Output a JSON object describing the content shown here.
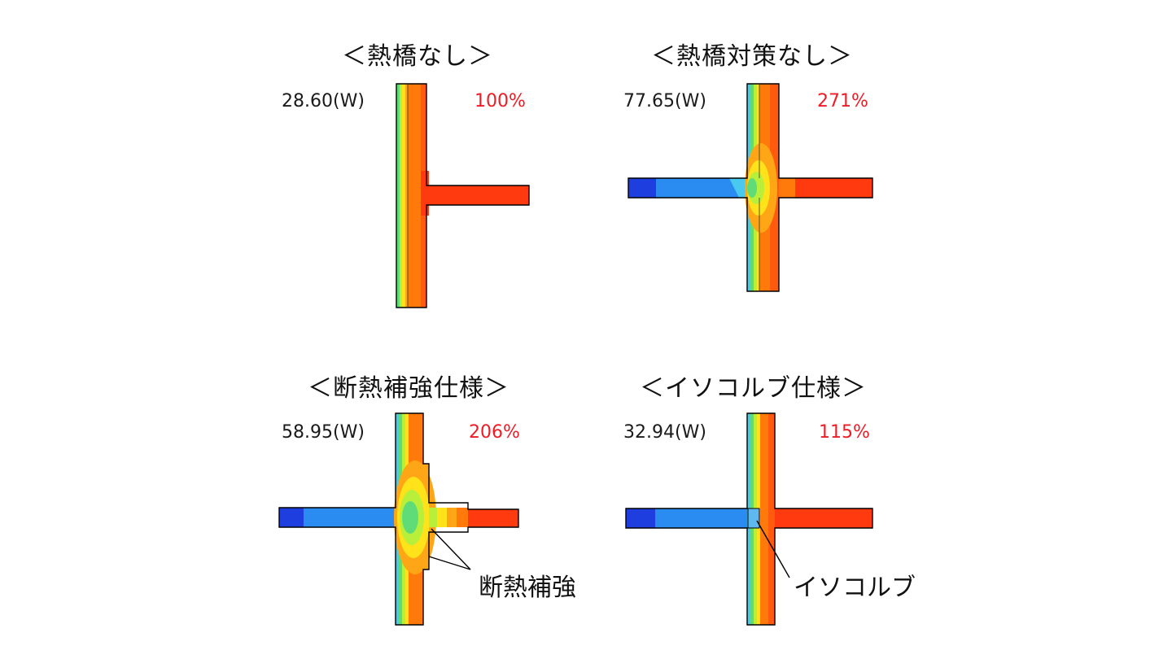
{
  "colors": {
    "red": "#ff3a0e",
    "orange": "#ff7a0a",
    "amber": "#ffa616",
    "yellow": "#ffe21a",
    "lime": "#b8ef3a",
    "green": "#5fdc78",
    "cyan": "#49c9f0",
    "blue": "#2a8cf0",
    "navy": "#1e3ee0",
    "pct_text": "#ee1c25",
    "outline": "#000000"
  },
  "panels": [
    {
      "id": "no_bridge",
      "title": "＜熱橋なし＞",
      "watt": "28.60(W)",
      "pct": "100%"
    },
    {
      "id": "no_measure",
      "title": "＜熱橋対策なし＞",
      "watt": "77.65(W)",
      "pct": "271%"
    },
    {
      "id": "insul_reinf",
      "title": "＜断熱補強仕様＞",
      "watt": "58.95(W)",
      "pct": "206%",
      "callout": "断熱補強"
    },
    {
      "id": "isokorb",
      "title": "＜イソコルブ仕様＞",
      "watt": "32.94(W)",
      "pct": "115%",
      "callout": "イソコルブ"
    }
  ]
}
